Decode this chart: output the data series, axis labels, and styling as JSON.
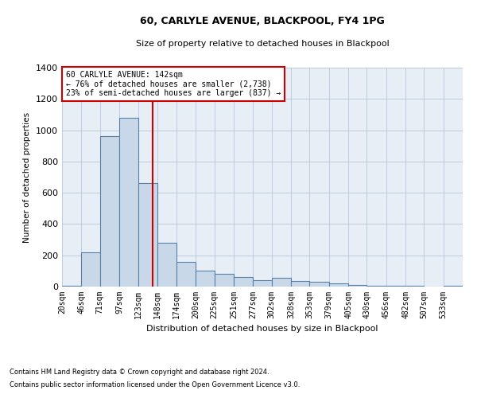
{
  "title1": "60, CARLYLE AVENUE, BLACKPOOL, FY4 1PG",
  "title2": "Size of property relative to detached houses in Blackpool",
  "xlabel": "Distribution of detached houses by size in Blackpool",
  "ylabel": "Number of detached properties",
  "annotation_line1": "60 CARLYLE AVENUE: 142sqm",
  "annotation_line2": "← 76% of detached houses are smaller (2,738)",
  "annotation_line3": "23% of semi-detached houses are larger (837) →",
  "property_size": 142,
  "bar_color": "#c8d8e8",
  "bar_edge_color": "#5580aa",
  "vline_color": "#cc0000",
  "grid_color": "#b8c8d8",
  "bg_color": "#e8eef5",
  "categories": [
    "20sqm",
    "46sqm",
    "71sqm",
    "97sqm",
    "123sqm",
    "148sqm",
    "174sqm",
    "200sqm",
    "225sqm",
    "251sqm",
    "277sqm",
    "302sqm",
    "328sqm",
    "353sqm",
    "379sqm",
    "405sqm",
    "430sqm",
    "456sqm",
    "482sqm",
    "507sqm",
    "533sqm"
  ],
  "bin_edges": [
    20,
    46,
    71,
    97,
    123,
    148,
    174,
    200,
    225,
    251,
    277,
    302,
    328,
    353,
    379,
    405,
    430,
    456,
    482,
    507,
    533,
    559
  ],
  "values": [
    5,
    220,
    960,
    1080,
    660,
    280,
    160,
    100,
    80,
    60,
    40,
    55,
    38,
    32,
    20,
    10,
    5,
    5,
    5,
    0,
    5
  ],
  "ylim": [
    0,
    1400
  ],
  "yticks": [
    0,
    200,
    400,
    600,
    800,
    1000,
    1200,
    1400
  ],
  "footnote1": "Contains HM Land Registry data © Crown copyright and database right 2024.",
  "footnote2": "Contains public sector information licensed under the Open Government Licence v3.0."
}
